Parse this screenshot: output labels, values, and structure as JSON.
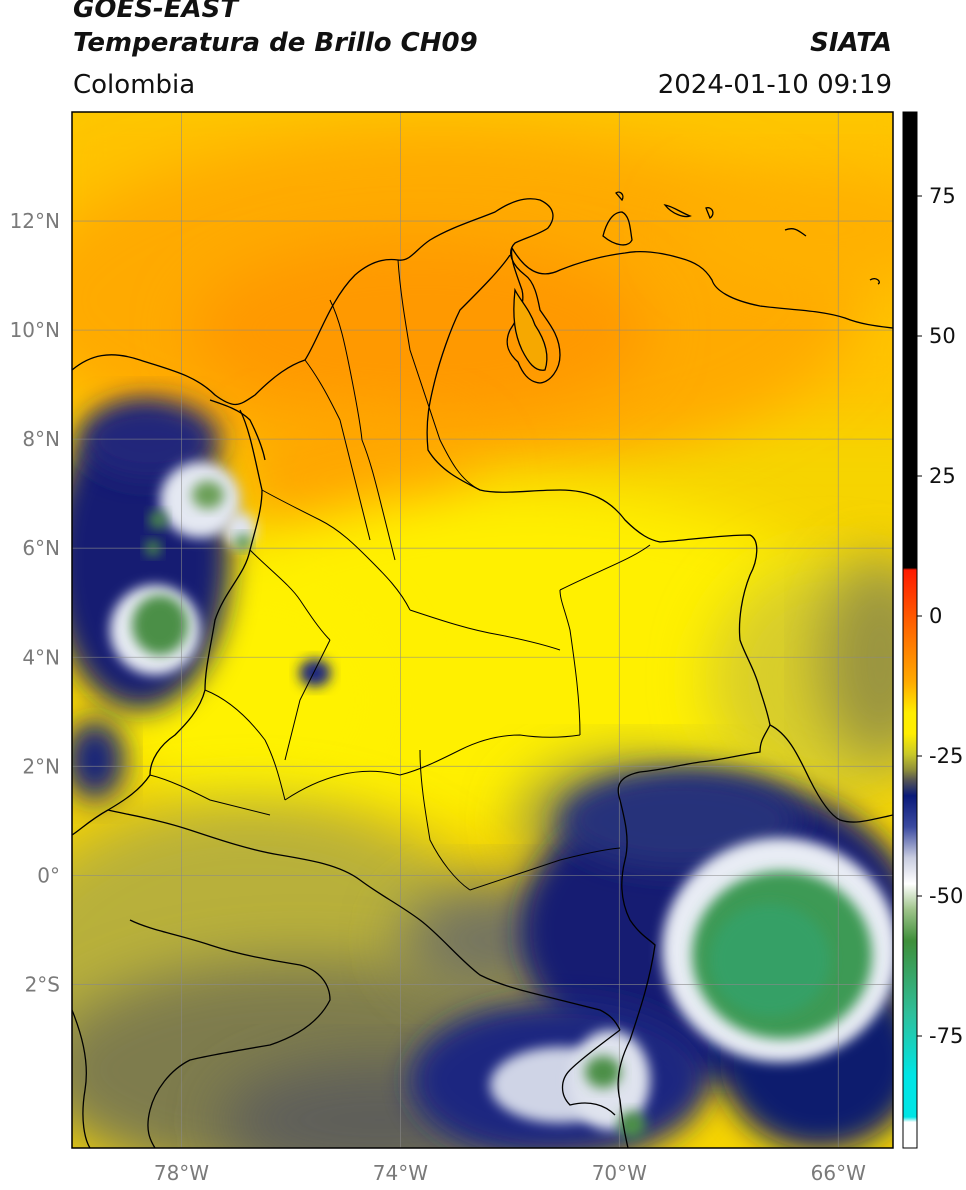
{
  "header": {
    "satellite": "GOES-EAST",
    "product": "Temperatura de Brillo CH09",
    "region": "Colombia",
    "organization": "SIATA",
    "timestamp": "2024-01-10 09:19"
  },
  "map": {
    "lon_range": [
      -80.0,
      -65.0
    ],
    "lat_range": [
      -5.0,
      14.0
    ],
    "lon_ticks": [
      {
        "value": -78,
        "label": "78°W"
      },
      {
        "value": -74,
        "label": "74°W"
      },
      {
        "value": -70,
        "label": "70°W"
      },
      {
        "value": -66,
        "label": "66°W"
      }
    ],
    "lat_ticks": [
      {
        "value": 12,
        "label": "12°N"
      },
      {
        "value": 10,
        "label": "10°N"
      },
      {
        "value": 8,
        "label": "8°N"
      },
      {
        "value": 6,
        "label": "6°N"
      },
      {
        "value": 4,
        "label": "4°N"
      },
      {
        "value": 2,
        "label": "2°N"
      },
      {
        "value": 0,
        "label": "0°"
      },
      {
        "value": -2,
        "label": "2°S"
      }
    ],
    "gridlines": true
  },
  "colorbar": {
    "range": [
      -95,
      90
    ],
    "ticks": [
      {
        "value": 75,
        "label": "75"
      },
      {
        "value": 50,
        "label": "50"
      },
      {
        "value": 25,
        "label": "25"
      },
      {
        "value": 0,
        "label": "0"
      },
      {
        "value": -25,
        "label": "-25"
      },
      {
        "value": -50,
        "label": "-50"
      },
      {
        "value": -75,
        "label": "-75"
      }
    ],
    "colors": {
      "black": "#000000",
      "red": "#ff1a00",
      "orange": "#ff9900",
      "yellow": "#ffee00",
      "olive": "#9a9a2a",
      "gray": "#5a5a5a",
      "navy": "#0a1a7a",
      "white": "#ffffff",
      "green": "#3f8f3a",
      "teal": "#2fbf9a",
      "cyan": "#00e5e5"
    }
  }
}
